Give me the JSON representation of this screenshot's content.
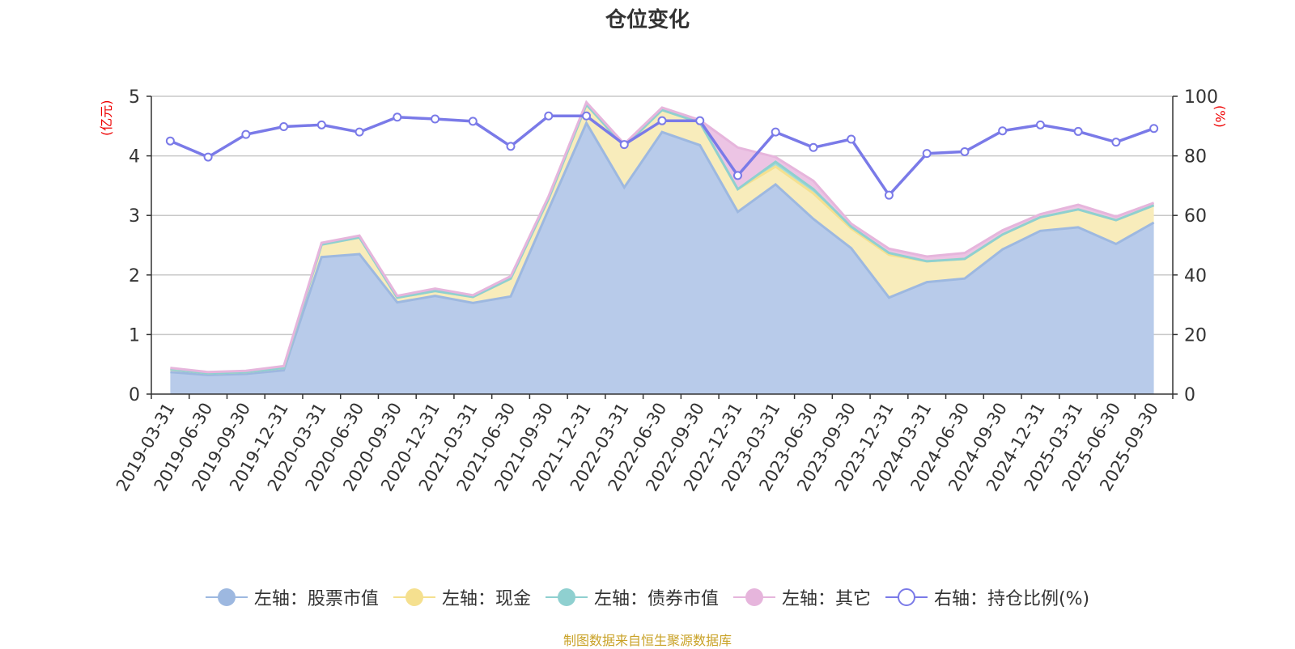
{
  "chart_data": {
    "type": "area",
    "title": "仓位变化",
    "left_axis_unit": "(亿元)",
    "right_axis_unit": "(%)",
    "ylim_left": [
      0,
      5
    ],
    "ylim_right": [
      0,
      100
    ],
    "yticks_left": [
      "0",
      "1",
      "2",
      "3",
      "4",
      "5"
    ],
    "yticks_right": [
      "0",
      "20",
      "40",
      "60",
      "80",
      "100"
    ],
    "x": [
      "2019-03-31",
      "2019-06-30",
      "2019-09-30",
      "2019-12-31",
      "2020-03-31",
      "2020-06-30",
      "2020-09-30",
      "2020-12-31",
      "2021-03-31",
      "2021-06-30",
      "2021-09-30",
      "2021-12-31",
      "2022-03-31",
      "2022-06-30",
      "2022-09-30",
      "2022-12-31",
      "2023-03-31",
      "2023-06-30",
      "2023-09-30",
      "2023-12-31",
      "2024-03-31",
      "2024-06-30",
      "2024-09-30",
      "2024-12-31",
      "2025-03-31",
      "2025-06-30",
      "2025-09-30"
    ],
    "series": [
      {
        "name": "左轴：股票市值",
        "axis": "left",
        "stack": true,
        "color": "#9db8e0",
        "fill": "#b8cbea",
        "values": [
          0.37,
          0.32,
          0.34,
          0.4,
          2.3,
          2.35,
          1.54,
          1.65,
          1.53,
          1.64,
          3.1,
          4.55,
          3.47,
          4.4,
          4.18,
          3.06,
          3.52,
          2.94,
          2.45,
          1.62,
          1.88,
          1.94,
          2.43,
          2.74,
          2.8,
          2.52,
          2.88
        ]
      },
      {
        "name": "左轴：现金",
        "axis": "left",
        "stack": true,
        "color": "#f5e08f",
        "fill": "#f8ecbb",
        "values": [
          0.05,
          0.03,
          0.03,
          0.04,
          0.21,
          0.28,
          0.08,
          0.08,
          0.1,
          0.3,
          0.18,
          0.31,
          0.69,
          0.37,
          0.38,
          0.38,
          0.3,
          0.43,
          0.33,
          0.72,
          0.35,
          0.33,
          0.25,
          0.23,
          0.3,
          0.4,
          0.29
        ]
      },
      {
        "name": "左轴：债券市值",
        "axis": "left",
        "stack": true,
        "color": "#8fd0d0",
        "fill": "#a5dcd8",
        "values": [
          0,
          0,
          0,
          0,
          0,
          0,
          0,
          0,
          0,
          0,
          0,
          0,
          0,
          0,
          0,
          0,
          0.08,
          0.07,
          0.03,
          0.03,
          0,
          0,
          0,
          0,
          0,
          0,
          0
        ]
      },
      {
        "name": "左轴：其它",
        "axis": "left",
        "stack": true,
        "color": "#e6b5dc",
        "fill": "#ecc4e4",
        "values": [
          0.02,
          0.02,
          0.02,
          0.03,
          0.03,
          0.03,
          0.03,
          0.04,
          0.03,
          0.04,
          0.04,
          0.04,
          0.04,
          0.04,
          0.04,
          0.7,
          0.08,
          0.14,
          0.05,
          0.07,
          0.08,
          0.1,
          0.07,
          0.05,
          0.08,
          0.06,
          0.04
        ]
      },
      {
        "name": "右轴：持仓比例(%)",
        "axis": "right",
        "stack": false,
        "color": "#7a7ae8",
        "values": [
          85.0,
          79.6,
          87.2,
          89.8,
          90.4,
          88.0,
          93.0,
          92.4,
          91.6,
          83.2,
          93.4,
          93.4,
          83.8,
          91.8,
          91.8,
          73.4,
          88.0,
          82.8,
          85.6,
          66.8,
          80.8,
          81.4,
          88.4,
          90.4,
          88.2,
          84.6,
          89.2
        ]
      }
    ],
    "legend_position": "bottom",
    "grid": true
  },
  "source": "制图数据来自恒生聚源数据库"
}
